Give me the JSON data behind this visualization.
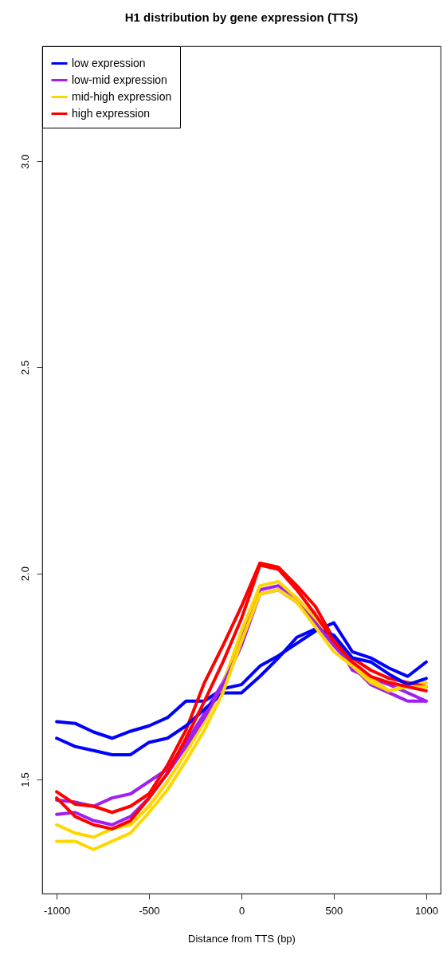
{
  "chart_data": {
    "type": "line",
    "title": "H1 distribution by gene expression (TTS)",
    "xlabel": "Distance from TTS (bp)",
    "x": [
      -1000,
      -900,
      -800,
      -700,
      -600,
      -500,
      -400,
      -300,
      -200,
      -100,
      0,
      100,
      200,
      300,
      400,
      500,
      600,
      700,
      800,
      900,
      1000
    ],
    "series": [
      {
        "name": "low expression",
        "color": "#0000ff",
        "values": [
          1.64,
          1.636,
          1.615,
          1.6,
          1.617,
          1.63,
          1.65,
          1.69,
          1.69,
          1.72,
          1.73,
          1.775,
          1.8,
          1.83,
          1.86,
          1.88,
          1.81,
          1.795,
          1.77,
          1.75,
          1.785
        ]
      },
      {
        "color": "#0000ff",
        "values": [
          1.6,
          1.58,
          1.57,
          1.56,
          1.56,
          1.59,
          1.6,
          1.63,
          1.67,
          1.71,
          1.71,
          1.75,
          1.795,
          1.845,
          1.865,
          1.85,
          1.795,
          1.785,
          1.755,
          1.73,
          1.745
        ]
      },
      {
        "name": "low-mid expression",
        "color": "#a020f0",
        "values": [
          1.45,
          1.445,
          1.435,
          1.455,
          1.465,
          1.495,
          1.525,
          1.59,
          1.66,
          1.735,
          1.84,
          1.96,
          1.97,
          1.94,
          1.89,
          1.845,
          1.765,
          1.745,
          1.73,
          1.71,
          1.69
        ]
      },
      {
        "color": "#a020f0",
        "values": [
          1.415,
          1.42,
          1.4,
          1.39,
          1.41,
          1.455,
          1.515,
          1.58,
          1.65,
          1.73,
          1.825,
          1.95,
          1.96,
          1.93,
          1.88,
          1.825,
          1.775,
          1.73,
          1.71,
          1.69,
          1.69
        ]
      },
      {
        "name": "mid-high expression",
        "color": "#ffd700",
        "values": [
          1.39,
          1.37,
          1.36,
          1.38,
          1.39,
          1.435,
          1.495,
          1.565,
          1.64,
          1.73,
          1.86,
          1.97,
          1.98,
          1.94,
          1.89,
          1.825,
          1.785,
          1.745,
          1.715,
          1.73,
          1.735
        ]
      },
      {
        "color": "#ffd700",
        "values": [
          1.35,
          1.35,
          1.33,
          1.35,
          1.37,
          1.42,
          1.475,
          1.545,
          1.62,
          1.71,
          1.835,
          1.95,
          1.96,
          1.93,
          1.87,
          1.81,
          1.775,
          1.735,
          1.715,
          1.725,
          1.725
        ]
      },
      {
        "name": "high expression",
        "color": "#ff0000",
        "values": [
          1.47,
          1.44,
          1.435,
          1.42,
          1.435,
          1.465,
          1.535,
          1.62,
          1.735,
          1.825,
          1.92,
          2.025,
          2.015,
          1.97,
          1.92,
          1.84,
          1.795,
          1.765,
          1.745,
          1.735,
          1.725
        ]
      },
      {
        "color": "#ff0000",
        "values": [
          1.455,
          1.41,
          1.39,
          1.38,
          1.4,
          1.455,
          1.515,
          1.6,
          1.69,
          1.785,
          1.89,
          2.02,
          2.01,
          1.96,
          1.9,
          1.835,
          1.785,
          1.75,
          1.735,
          1.725,
          1.715
        ]
      }
    ],
    "xlim": [
      -1078,
      1078
    ],
    "ylim": [
      1.223,
      3.279
    ],
    "xticks": [
      -1000,
      -500,
      0,
      500,
      1000
    ],
    "yticks": [
      1.5,
      {
        "value": 2,
        "label": "2.0"
      },
      2.5,
      {
        "value": 3,
        "label": "3.0"
      }
    ],
    "legend": "top left",
    "grid": false,
    "marker": "none",
    "line_style": "solid"
  }
}
